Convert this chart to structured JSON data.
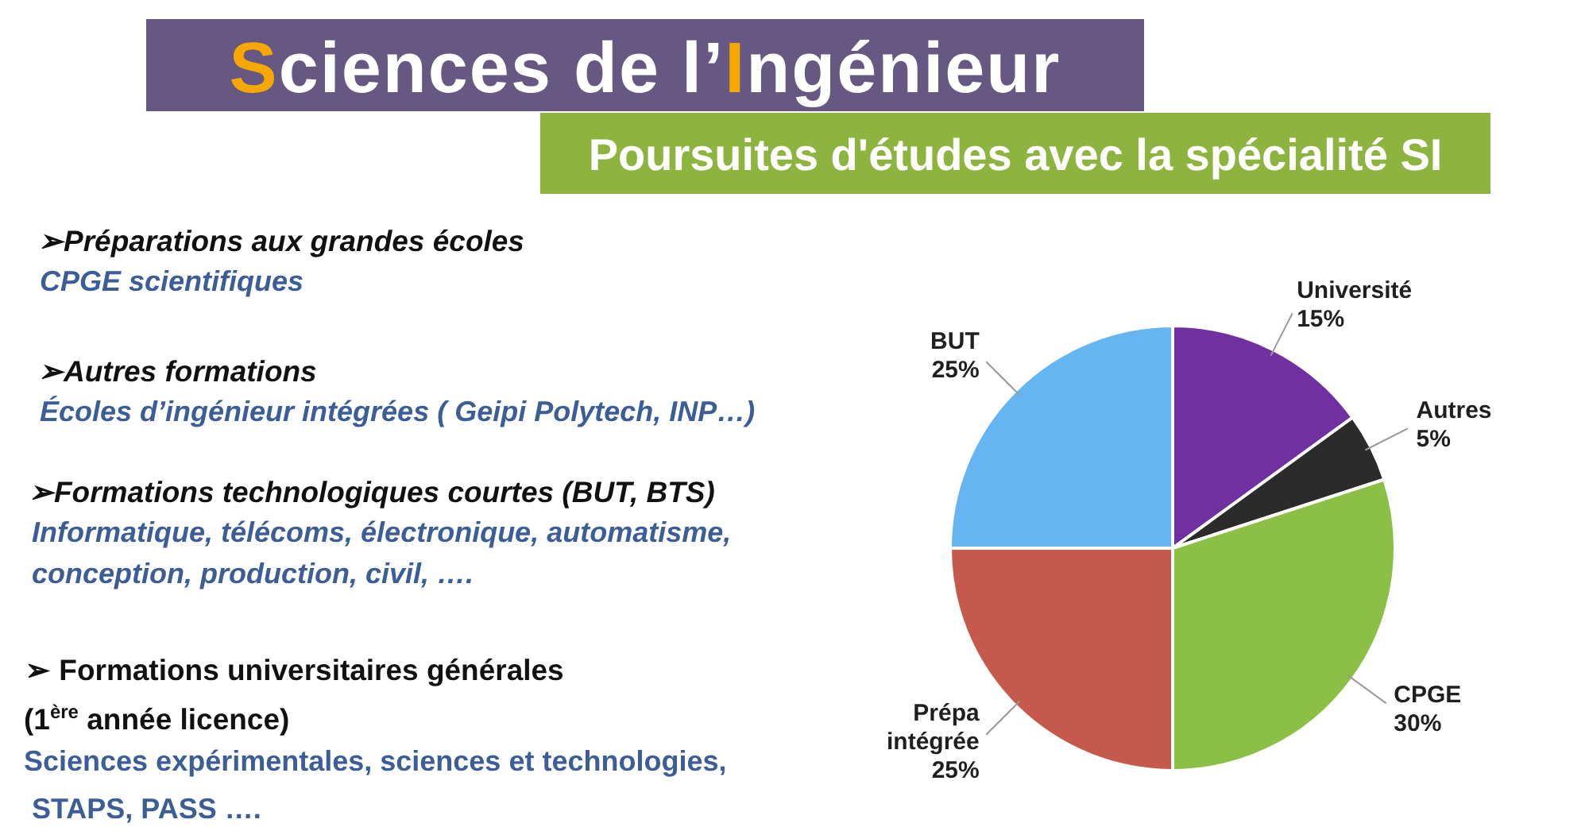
{
  "chart_data": {
    "type": "pie",
    "title": "Sciences de l’Ingénieur",
    "subtitle": "Poursuites d'études avec la spécialité SI",
    "categories": [
      "Université",
      "Autres",
      "CPGE",
      "Prépa intégrée",
      "BUT"
    ],
    "values": [
      15,
      5,
      30,
      25,
      25
    ],
    "value_labels": [
      "15%",
      "5%",
      "30%",
      "25%",
      "25%"
    ],
    "colors": [
      "#7030a0",
      "#2b2b2b",
      "#8cbf45",
      "#c55a4c",
      "#66b5f3"
    ],
    "annotations": [
      "➢Préparations aux grandes écoles",
      "CPGE scientifiques",
      "➢Autres formations",
      "Écoles d’ingénieur intégrées ( Geipi Polytech, INP…)",
      "➢Formations technologiques courtes (BUT, BTS)",
      "Informatique, télécoms, électronique, automatisme,",
      "conception, production, civil,  ….",
      "➢ Formations universitaires générales",
      "(1$^{ère}$ année licence)",
      "Sciences expérimentales, sciences et technologies,",
      "STAPS, PASS …."
    ]
  }
}
